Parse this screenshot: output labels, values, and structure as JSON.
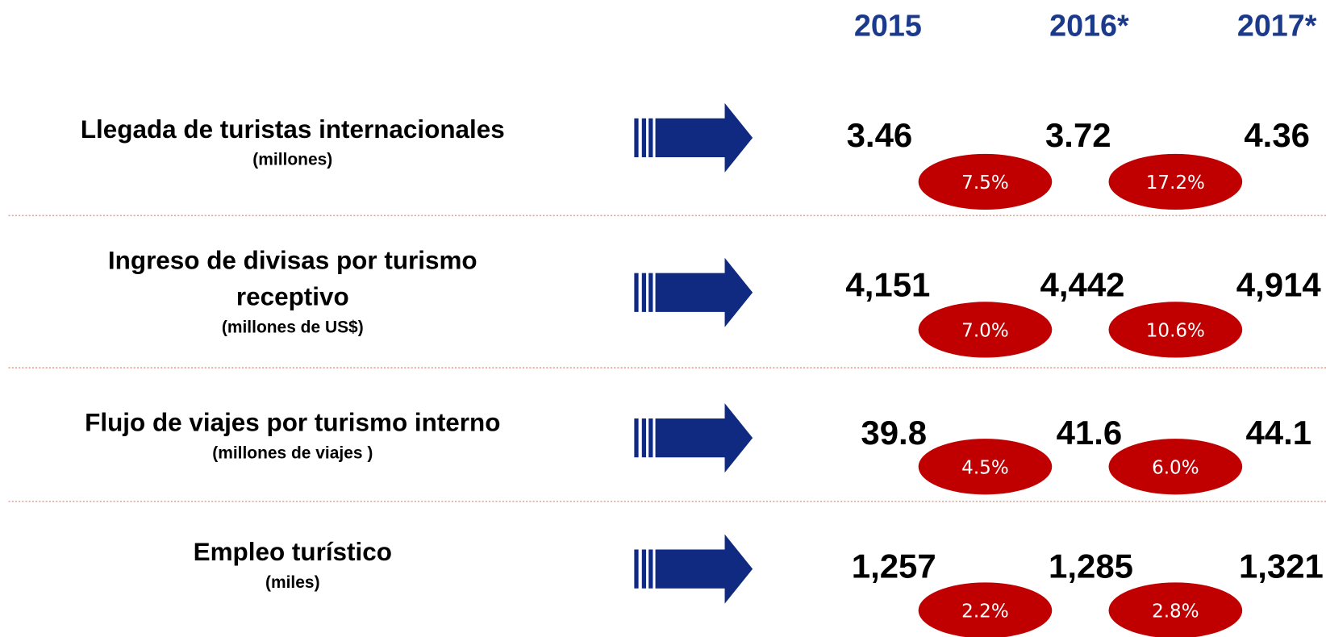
{
  "years": [
    "2015",
    "2016*",
    "2017*"
  ],
  "rows": [
    {
      "label_lines": [
        "Llegada de turistas internacionales"
      ],
      "unit": "(millones)",
      "values": [
        "3.46",
        "3.72",
        "4.36"
      ],
      "growth": [
        "7.5%",
        "17.2%"
      ]
    },
    {
      "label_lines": [
        "Ingreso de divisas por turismo",
        "receptivo"
      ],
      "unit": "(millones de US$)",
      "values": [
        "4,151",
        "4,442",
        "4,914"
      ],
      "growth": [
        "7.0%",
        "10.6%"
      ]
    },
    {
      "label_lines": [
        "Flujo de viajes por turismo interno"
      ],
      "unit": "(millones de viajes )",
      "values": [
        "39.8",
        "41.6",
        "44.1"
      ],
      "growth": [
        "4.5%",
        "6.0%"
      ]
    },
    {
      "label_lines": [
        "Empleo turístico"
      ],
      "unit": "(miles)",
      "values": [
        "1,257",
        "1,285",
        "1,321"
      ],
      "growth": [
        "2.2%",
        "2.8%"
      ]
    }
  ]
}
